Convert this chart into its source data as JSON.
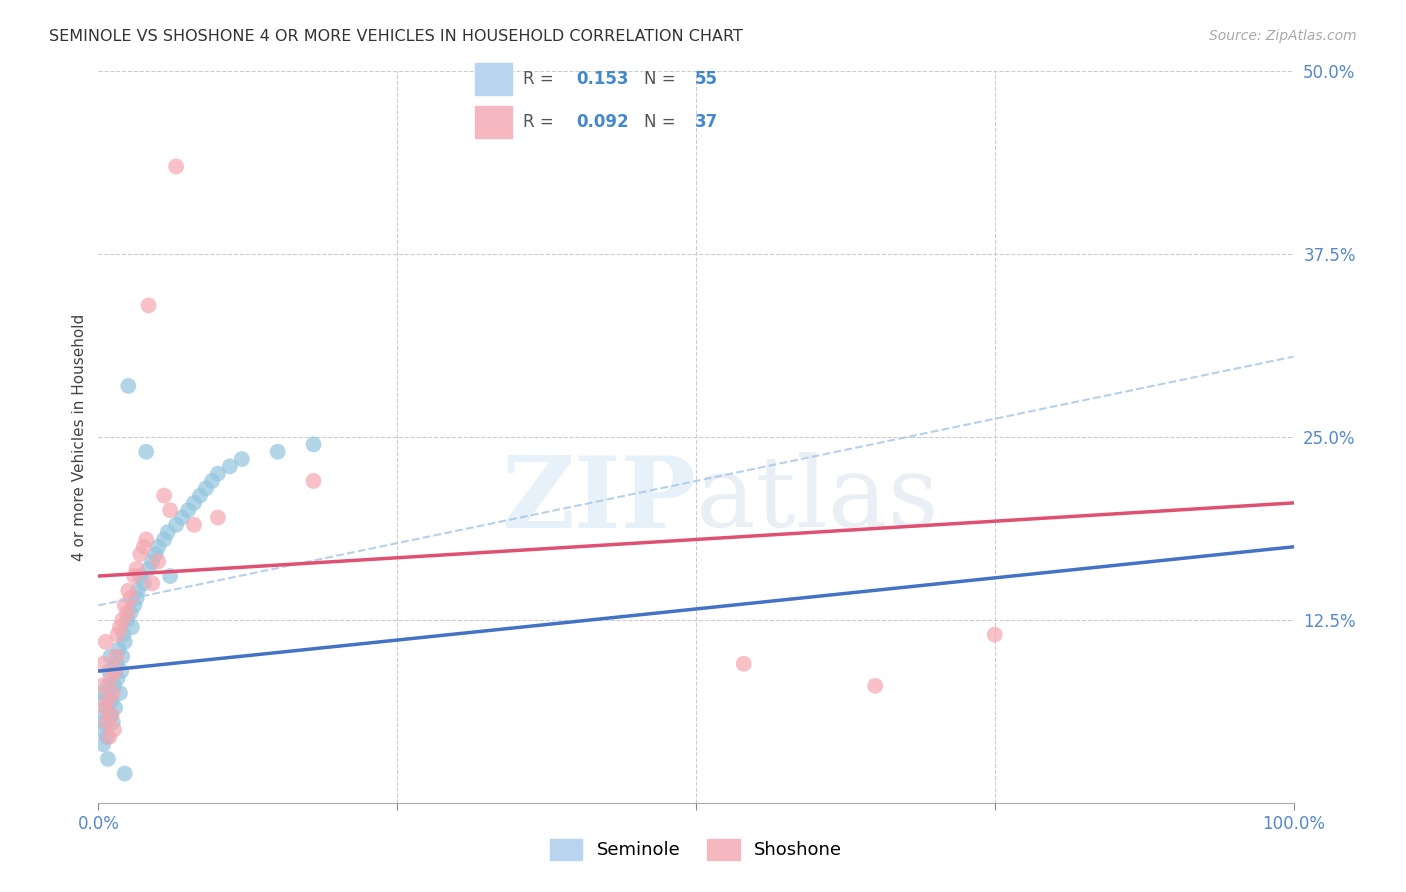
{
  "title": "SEMINOLE VS SHOSHONE 4 OR MORE VEHICLES IN HOUSEHOLD CORRELATION CHART",
  "source": "Source: ZipAtlas.com",
  "ylabel": "4 or more Vehicles in Household",
  "seminole_R": 0.153,
  "seminole_N": 55,
  "shoshone_R": 0.092,
  "shoshone_N": 37,
  "xlim": [
    0,
    1.0
  ],
  "ylim": [
    0,
    0.5
  ],
  "seminole_color": "#92c5de",
  "shoshone_color": "#f4a7b0",
  "seminole_line_color": "#4472c4",
  "shoshone_line_color": "#e05070",
  "dashed_line_color": "#aac8e8",
  "background_color": "#ffffff",
  "seminole_x": [
    0.003,
    0.004,
    0.004,
    0.005,
    0.005,
    0.006,
    0.007,
    0.007,
    0.008,
    0.008,
    0.009,
    0.01,
    0.01,
    0.011,
    0.012,
    0.013,
    0.014,
    0.015,
    0.016,
    0.017,
    0.018,
    0.019,
    0.02,
    0.021,
    0.022,
    0.024,
    0.025,
    0.027,
    0.028,
    0.03,
    0.032,
    0.033,
    0.035,
    0.038,
    0.04,
    0.042,
    0.045,
    0.048,
    0.05,
    0.055,
    0.058,
    0.06,
    0.065,
    0.07,
    0.075,
    0.08,
    0.085,
    0.09,
    0.095,
    0.1,
    0.11,
    0.12,
    0.15,
    0.18,
    0.022
  ],
  "seminole_y": [
    0.05,
    0.075,
    0.04,
    0.07,
    0.055,
    0.06,
    0.045,
    0.065,
    0.03,
    0.08,
    0.09,
    0.06,
    0.1,
    0.07,
    0.055,
    0.08,
    0.065,
    0.095,
    0.085,
    0.105,
    0.075,
    0.09,
    0.1,
    0.115,
    0.11,
    0.125,
    0.285,
    0.13,
    0.12,
    0.135,
    0.14,
    0.145,
    0.155,
    0.15,
    0.24,
    0.16,
    0.165,
    0.17,
    0.175,
    0.18,
    0.185,
    0.155,
    0.19,
    0.195,
    0.2,
    0.205,
    0.21,
    0.215,
    0.22,
    0.225,
    0.23,
    0.235,
    0.24,
    0.245,
    0.02
  ],
  "shoshone_x": [
    0.003,
    0.004,
    0.005,
    0.006,
    0.007,
    0.008,
    0.009,
    0.01,
    0.011,
    0.012,
    0.013,
    0.014,
    0.015,
    0.016,
    0.018,
    0.02,
    0.022,
    0.024,
    0.025,
    0.027,
    0.03,
    0.032,
    0.035,
    0.038,
    0.04,
    0.042,
    0.045,
    0.05,
    0.055,
    0.06,
    0.065,
    0.08,
    0.1,
    0.18,
    0.54,
    0.65,
    0.75
  ],
  "shoshone_y": [
    0.08,
    0.095,
    0.065,
    0.11,
    0.055,
    0.07,
    0.045,
    0.085,
    0.06,
    0.075,
    0.05,
    0.09,
    0.1,
    0.115,
    0.12,
    0.125,
    0.135,
    0.13,
    0.145,
    0.14,
    0.155,
    0.16,
    0.17,
    0.175,
    0.18,
    0.34,
    0.15,
    0.165,
    0.21,
    0.2,
    0.435,
    0.19,
    0.195,
    0.22,
    0.095,
    0.08,
    0.115
  ]
}
